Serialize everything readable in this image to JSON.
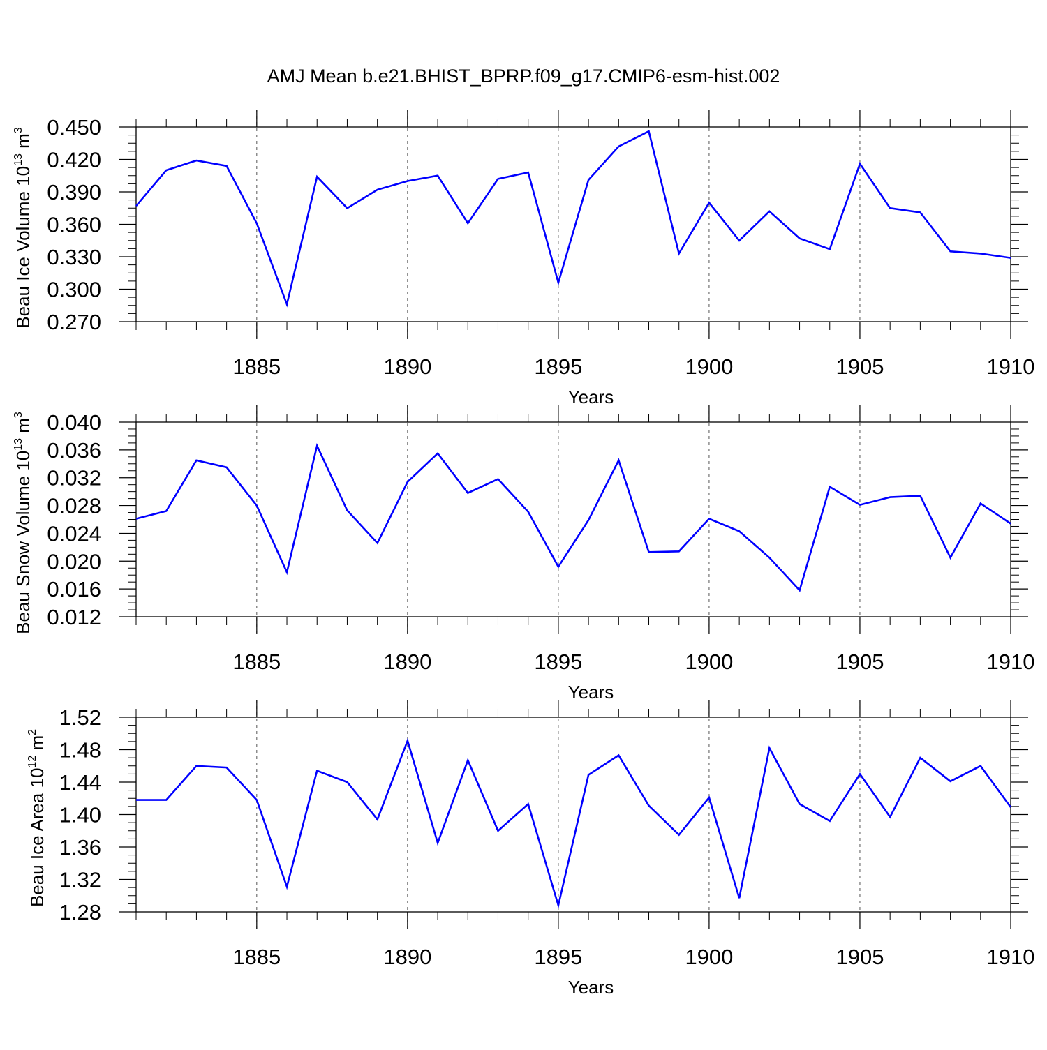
{
  "title": "AMJ Mean b.e21.BHIST_BPRP.f09_g17.CMIP6-esm-hist.002",
  "line_color": "#0000ff",
  "chart_data": [
    {
      "type": "line",
      "ylabel_main": "Beau Ice Volume 10",
      "ylabel_exp": "13",
      "ylabel_unit": "m",
      "ylabel_unit_exp": "3",
      "xlabel": "Years",
      "xlim": [
        1881,
        1910
      ],
      "ylim": [
        0.27,
        0.45
      ],
      "yticks": [
        "0.450",
        "0.420",
        "0.390",
        "0.360",
        "0.330",
        "0.300",
        "0.270"
      ],
      "ytick_values": [
        0.45,
        0.42,
        0.39,
        0.36,
        0.33,
        0.3,
        0.27
      ],
      "xticks": [
        "1885",
        "1890",
        "1895",
        "1900",
        "1905",
        "1910"
      ],
      "xtick_values": [
        1885,
        1890,
        1895,
        1900,
        1905,
        1910
      ],
      "x": [
        1881,
        1882,
        1883,
        1884,
        1885,
        1886,
        1887,
        1888,
        1889,
        1890,
        1891,
        1892,
        1893,
        1894,
        1895,
        1896,
        1897,
        1898,
        1899,
        1900,
        1901,
        1902,
        1903,
        1904,
        1905,
        1906,
        1907,
        1908,
        1909,
        1910
      ],
      "series": [
        {
          "values": [
            0.377,
            0.41,
            0.419,
            0.414,
            0.361,
            0.286,
            0.404,
            0.375,
            0.392,
            0.4,
            0.405,
            0.361,
            0.402,
            0.408,
            0.306,
            0.401,
            0.432,
            0.446,
            0.333,
            0.38,
            0.345,
            0.372,
            0.347,
            0.337,
            0.416,
            0.375,
            0.371,
            0.335,
            0.333,
            0.329
          ]
        }
      ],
      "grid": "dashed vertical at major x ticks"
    },
    {
      "type": "line",
      "ylabel_main": "Beau Snow Volume 10",
      "ylabel_exp": "13",
      "ylabel_unit": "m",
      "ylabel_unit_exp": "3",
      "xlabel": "Years",
      "xlim": [
        1881,
        1910
      ],
      "ylim": [
        0.012,
        0.04
      ],
      "yticks": [
        "0.040",
        "0.036",
        "0.032",
        "0.028",
        "0.024",
        "0.020",
        "0.016",
        "0.012"
      ],
      "ytick_values": [
        0.04,
        0.036,
        0.032,
        0.028,
        0.024,
        0.02,
        0.016,
        0.012
      ],
      "xticks": [
        "1885",
        "1890",
        "1895",
        "1900",
        "1905",
        "1910"
      ],
      "xtick_values": [
        1885,
        1890,
        1895,
        1900,
        1905,
        1910
      ],
      "x": [
        1881,
        1882,
        1883,
        1884,
        1885,
        1886,
        1887,
        1888,
        1889,
        1890,
        1891,
        1892,
        1893,
        1894,
        1895,
        1896,
        1897,
        1898,
        1899,
        1900,
        1901,
        1902,
        1903,
        1904,
        1905,
        1906,
        1907,
        1908,
        1909,
        1910
      ],
      "series": [
        {
          "values": [
            0.0261,
            0.0272,
            0.0345,
            0.0335,
            0.028,
            0.0184,
            0.0366,
            0.0273,
            0.0226,
            0.0314,
            0.0355,
            0.0298,
            0.0318,
            0.0271,
            0.0192,
            0.0259,
            0.0345,
            0.0213,
            0.0214,
            0.0261,
            0.0243,
            0.0205,
            0.0158,
            0.0307,
            0.0281,
            0.0292,
            0.0294,
            0.0205,
            0.0283,
            0.0254
          ]
        }
      ],
      "grid": "dashed vertical at major x ticks"
    },
    {
      "type": "line",
      "ylabel_main": "Beau Ice Area 10",
      "ylabel_exp": "12",
      "ylabel_unit": "m",
      "ylabel_unit_exp": "2",
      "xlabel": "Years",
      "xlim": [
        1881,
        1910
      ],
      "ylim": [
        1.28,
        1.52
      ],
      "yticks": [
        "1.52",
        "1.48",
        "1.44",
        "1.40",
        "1.36",
        "1.32",
        "1.28"
      ],
      "ytick_values": [
        1.52,
        1.48,
        1.44,
        1.4,
        1.36,
        1.32,
        1.28
      ],
      "xticks": [
        "1885",
        "1890",
        "1895",
        "1900",
        "1905",
        "1910"
      ],
      "xtick_values": [
        1885,
        1890,
        1895,
        1900,
        1905,
        1910
      ],
      "x": [
        1881,
        1882,
        1883,
        1884,
        1885,
        1886,
        1887,
        1888,
        1889,
        1890,
        1891,
        1892,
        1893,
        1894,
        1895,
        1896,
        1897,
        1898,
        1899,
        1900,
        1901,
        1902,
        1903,
        1904,
        1905,
        1906,
        1907,
        1908,
        1909,
        1910
      ],
      "series": [
        {
          "values": [
            1.418,
            1.418,
            1.46,
            1.458,
            1.418,
            1.311,
            1.454,
            1.44,
            1.394,
            1.491,
            1.365,
            1.467,
            1.38,
            1.413,
            1.288,
            1.449,
            1.473,
            1.411,
            1.375,
            1.421,
            1.297,
            1.482,
            1.413,
            1.392,
            1.45,
            1.397,
            1.47,
            1.441,
            1.46,
            1.409
          ]
        }
      ],
      "grid": "dashed vertical at major x ticks"
    }
  ]
}
